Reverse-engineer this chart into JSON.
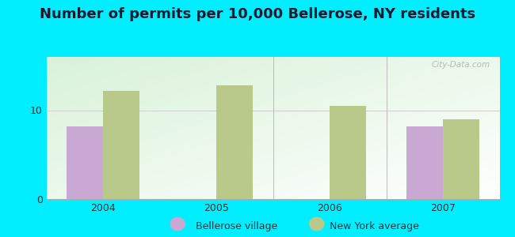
{
  "title": "Number of permits per 10,000 Bellerose, NY residents",
  "years": [
    2004,
    2005,
    2006,
    2007
  ],
  "bellerose_values": [
    8.2,
    0,
    0,
    8.2
  ],
  "ny_values": [
    12.2,
    12.8,
    10.5,
    9.0
  ],
  "bellerose_color": "#c9a8d4",
  "ny_color": "#b8c98a",
  "background_outer": "#00eeff",
  "ylim": [
    0,
    16
  ],
  "yticks": [
    0,
    10
  ],
  "bar_width": 0.32,
  "title_fontsize": 13,
  "legend_labels": [
    "Bellerose village",
    "New York average"
  ],
  "watermark": "City-Data.com"
}
